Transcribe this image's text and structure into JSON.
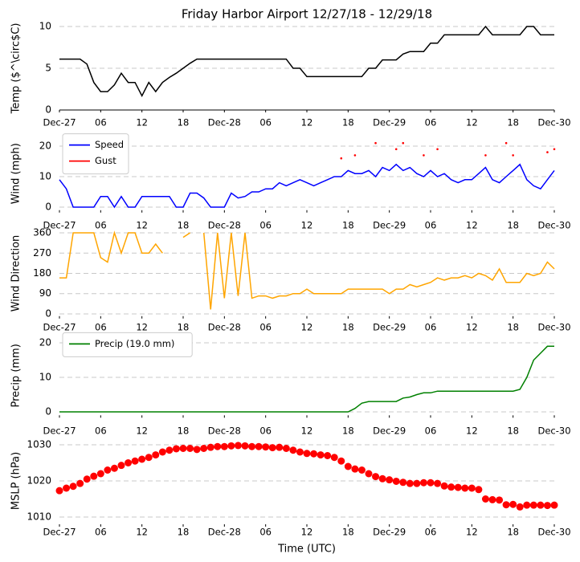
{
  "chart_data": [
    {
      "type": "line",
      "title": "Friday Harbor Airport 12/27/18 - 12/29/18",
      "ylabel": "Temp ($^\\circ$C)",
      "x": [
        0,
        1,
        2,
        3,
        4,
        5,
        6,
        7,
        8,
        9,
        10,
        11,
        12,
        13,
        14,
        15,
        16,
        17,
        18,
        19,
        20,
        21,
        22,
        23,
        24,
        25,
        26,
        27,
        28,
        29,
        30,
        31,
        32,
        33,
        34,
        35,
        36,
        37,
        38,
        39,
        40,
        41,
        42,
        43,
        44,
        45,
        46,
        47,
        48,
        49,
        50,
        51,
        52,
        53,
        54,
        55,
        56,
        57,
        58,
        59,
        60,
        61,
        62,
        63,
        64,
        65,
        66,
        67,
        68,
        69,
        70,
        71,
        72
      ],
      "xlim": [
        0,
        72
      ],
      "xticks": [
        {
          "value": 0,
          "label": "Dec-27"
        },
        {
          "value": 6,
          "label": "06"
        },
        {
          "value": 12,
          "label": "12"
        },
        {
          "value": 18,
          "label": "18"
        },
        {
          "value": 24,
          "label": "Dec-28"
        },
        {
          "value": 30,
          "label": "06"
        },
        {
          "value": 36,
          "label": "12"
        },
        {
          "value": 42,
          "label": "18"
        },
        {
          "value": 48,
          "label": "Dec-29"
        },
        {
          "value": 54,
          "label": "06"
        },
        {
          "value": 60,
          "label": "12"
        },
        {
          "value": 66,
          "label": "18"
        },
        {
          "value": 72,
          "label": "Dec-30"
        }
      ],
      "ylim": [
        0,
        10
      ],
      "yticks": [
        0,
        5,
        10
      ],
      "grid": true,
      "series": [
        {
          "name": "Temp",
          "color": "#000000",
          "values": [
            6.1,
            6.1,
            6.1,
            6.1,
            5.5,
            3.3,
            2.2,
            2.2,
            3,
            4.4,
            3.3,
            3.3,
            1.7,
            3.3,
            2.2,
            3.3,
            3.9,
            4.4,
            5,
            5.6,
            6.1,
            6.1,
            6.1,
            6.1,
            6.1,
            6.1,
            6.1,
            6.1,
            6.1,
            6.1,
            6.1,
            6.1,
            6.1,
            6.1,
            5,
            5,
            4,
            4,
            4,
            4,
            4,
            4,
            4,
            4,
            4,
            5,
            5,
            6,
            6,
            6,
            6.7,
            7,
            7,
            7,
            8,
            8,
            9,
            9,
            9,
            9,
            9,
            9,
            10,
            9,
            9,
            9,
            9,
            9,
            10,
            10,
            9,
            9,
            9
          ]
        }
      ]
    },
    {
      "type": "line",
      "ylabel": "Wind (mph)",
      "x": [
        0,
        1,
        2,
        3,
        4,
        5,
        6,
        7,
        8,
        9,
        10,
        11,
        12,
        13,
        14,
        15,
        16,
        17,
        18,
        19,
        20,
        21,
        22,
        23,
        24,
        25,
        26,
        27,
        28,
        29,
        30,
        31,
        32,
        33,
        34,
        35,
        36,
        37,
        38,
        39,
        40,
        41,
        42,
        43,
        44,
        45,
        46,
        47,
        48,
        49,
        50,
        51,
        52,
        53,
        54,
        55,
        56,
        57,
        58,
        59,
        60,
        61,
        62,
        63,
        64,
        65,
        66,
        67,
        68,
        69,
        70,
        71,
        72
      ],
      "xlim": [
        0,
        72
      ],
      "xticks": [
        {
          "value": 0,
          "label": "Dec-27"
        },
        {
          "value": 6,
          "label": "06"
        },
        {
          "value": 12,
          "label": "12"
        },
        {
          "value": 18,
          "label": "18"
        },
        {
          "value": 24,
          "label": "Dec-28"
        },
        {
          "value": 30,
          "label": "06"
        },
        {
          "value": 36,
          "label": "12"
        },
        {
          "value": 42,
          "label": "18"
        },
        {
          "value": 48,
          "label": "Dec-29"
        },
        {
          "value": 54,
          "label": "06"
        },
        {
          "value": 60,
          "label": "12"
        },
        {
          "value": 66,
          "label": "18"
        },
        {
          "value": 72,
          "label": "Dec-30"
        }
      ],
      "ylim": [
        -1,
        23
      ],
      "yticks": [
        0,
        10,
        20
      ],
      "grid": true,
      "legend": "upper left",
      "series": [
        {
          "name": "Speed",
          "color": "#0000ff",
          "values": [
            9,
            6,
            0,
            0,
            0,
            0,
            3.5,
            3.5,
            0,
            3.5,
            0,
            0,
            3.5,
            3.5,
            3.5,
            3.5,
            3.5,
            0,
            0,
            4.6,
            4.6,
            3,
            0,
            0,
            0,
            4.6,
            3,
            3.5,
            5,
            5,
            6,
            6,
            8,
            7,
            8,
            9,
            8,
            7,
            8,
            9,
            10,
            10,
            12,
            11,
            11,
            12,
            10,
            13,
            12,
            14,
            12,
            13,
            11,
            10,
            12,
            10,
            11,
            9,
            8,
            9,
            9,
            11,
            13,
            9,
            8,
            10,
            12,
            14,
            9,
            7,
            6,
            9,
            12
          ]
        },
        {
          "name": "Gust",
          "color": "#ff0000",
          "marker": "dot",
          "values": [
            null,
            null,
            null,
            null,
            null,
            null,
            null,
            null,
            null,
            null,
            null,
            null,
            null,
            null,
            null,
            null,
            null,
            null,
            null,
            null,
            null,
            null,
            null,
            null,
            null,
            null,
            null,
            null,
            null,
            null,
            null,
            null,
            null,
            null,
            null,
            null,
            null,
            null,
            null,
            null,
            null,
            16,
            null,
            17,
            null,
            null,
            21,
            null,
            null,
            19,
            21,
            null,
            null,
            17,
            null,
            19,
            null,
            null,
            null,
            null,
            null,
            null,
            17,
            null,
            null,
            21,
            17,
            null,
            null,
            null,
            null,
            18,
            19
          ]
        }
      ]
    },
    {
      "type": "line",
      "ylabel": "Wind Direction",
      "x": [
        0,
        1,
        2,
        3,
        4,
        5,
        6,
        7,
        8,
        9,
        10,
        11,
        12,
        13,
        14,
        15,
        16,
        17,
        18,
        19,
        20,
        21,
        22,
        23,
        24,
        25,
        26,
        27,
        28,
        29,
        30,
        31,
        32,
        33,
        34,
        35,
        36,
        37,
        38,
        39,
        40,
        41,
        42,
        43,
        44,
        45,
        46,
        47,
        48,
        49,
        50,
        51,
        52,
        53,
        54,
        55,
        56,
        57,
        58,
        59,
        60,
        61,
        62,
        63,
        64,
        65,
        66,
        67,
        68,
        69,
        70,
        71,
        72
      ],
      "xlim": [
        0,
        72
      ],
      "xticks": [
        {
          "value": 0,
          "label": "Dec-27"
        },
        {
          "value": 6,
          "label": "06"
        },
        {
          "value": 12,
          "label": "12"
        },
        {
          "value": 18,
          "label": "18"
        },
        {
          "value": 24,
          "label": "Dec-28"
        },
        {
          "value": 30,
          "label": "06"
        },
        {
          "value": 36,
          "label": "12"
        },
        {
          "value": 42,
          "label": "18"
        },
        {
          "value": 48,
          "label": "Dec-29"
        },
        {
          "value": 54,
          "label": "06"
        },
        {
          "value": 60,
          "label": "12"
        },
        {
          "value": 66,
          "label": "18"
        },
        {
          "value": 72,
          "label": "Dec-30"
        }
      ],
      "ylim": [
        -10,
        370
      ],
      "yticks": [
        0,
        90,
        180,
        270,
        360
      ],
      "grid": true,
      "series": [
        {
          "name": "Direction",
          "color": "#ffa500",
          "values": [
            160,
            160,
            360,
            360,
            360,
            360,
            250,
            230,
            360,
            270,
            360,
            360,
            270,
            270,
            310,
            270,
            null,
            null,
            340,
            360,
            null,
            360,
            20,
            360,
            70,
            360,
            80,
            360,
            70,
            80,
            80,
            70,
            80,
            80,
            90,
            90,
            110,
            90,
            90,
            90,
            90,
            90,
            110,
            110,
            110,
            110,
            110,
            110,
            90,
            110,
            110,
            130,
            120,
            130,
            140,
            160,
            150,
            160,
            160,
            170,
            160,
            180,
            170,
            150,
            200,
            140,
            140,
            140,
            180,
            170,
            180,
            230,
            200
          ]
        }
      ]
    },
    {
      "type": "line",
      "ylabel": "Precip (mm)",
      "x": [
        0,
        1,
        2,
        3,
        4,
        5,
        6,
        7,
        8,
        9,
        10,
        11,
        12,
        13,
        14,
        15,
        16,
        17,
        18,
        19,
        20,
        21,
        22,
        23,
        24,
        25,
        26,
        27,
        28,
        29,
        30,
        31,
        32,
        33,
        34,
        35,
        36,
        37,
        38,
        39,
        40,
        41,
        42,
        43,
        44,
        45,
        46,
        47,
        48,
        49,
        50,
        51,
        52,
        53,
        54,
        55,
        56,
        57,
        58,
        59,
        60,
        61,
        62,
        63,
        64,
        65,
        66,
        67,
        68,
        69,
        70,
        71,
        72
      ],
      "xlim": [
        0,
        72
      ],
      "xticks": [
        {
          "value": 0,
          "label": "Dec-27"
        },
        {
          "value": 6,
          "label": "06"
        },
        {
          "value": 12,
          "label": "12"
        },
        {
          "value": 18,
          "label": "18"
        },
        {
          "value": 24,
          "label": "Dec-28"
        },
        {
          "value": 30,
          "label": "06"
        },
        {
          "value": 36,
          "label": "12"
        },
        {
          "value": 42,
          "label": "18"
        },
        {
          "value": 48,
          "label": "Dec-29"
        },
        {
          "value": 54,
          "label": "06"
        },
        {
          "value": 60,
          "label": "12"
        },
        {
          "value": 66,
          "label": "18"
        },
        {
          "value": 72,
          "label": "Dec-30"
        }
      ],
      "ylim": [
        -1,
        22
      ],
      "yticks": [
        0,
        10,
        20
      ],
      "grid": true,
      "legend": "upper left",
      "series": [
        {
          "name": "Precip (19.0 mm)",
          "color": "#008000",
          "values": [
            0,
            0,
            0,
            0,
            0,
            0,
            0,
            0,
            0,
            0,
            0,
            0,
            0,
            0,
            0,
            0,
            0,
            0,
            0,
            0,
            0,
            0,
            0,
            0,
            0,
            0,
            0,
            0,
            0,
            0,
            0,
            0,
            0,
            0,
            0,
            0,
            0,
            0,
            0,
            0,
            0,
            0,
            0,
            1,
            2.5,
            3,
            3,
            3,
            3,
            3,
            4,
            4.3,
            5,
            5.5,
            5.5,
            6,
            6,
            6,
            6,
            6,
            6,
            6,
            6,
            6,
            6,
            6,
            6,
            6.5,
            10,
            15,
            17,
            19,
            19
          ]
        }
      ]
    },
    {
      "type": "scatter",
      "ylabel": "MSLP (hPa)",
      "xlabel": "Time (UTC)",
      "x": [
        0,
        1,
        2,
        3,
        4,
        5,
        6,
        7,
        8,
        9,
        10,
        11,
        12,
        13,
        14,
        15,
        16,
        17,
        18,
        19,
        20,
        21,
        22,
        23,
        24,
        25,
        26,
        27,
        28,
        29,
        30,
        31,
        32,
        33,
        34,
        35,
        36,
        37,
        38,
        39,
        40,
        41,
        42,
        43,
        44,
        45,
        46,
        47,
        48,
        49,
        50,
        51,
        52,
        53,
        54,
        55,
        56,
        57,
        58,
        59,
        60,
        61,
        62,
        63,
        64,
        65,
        66,
        67,
        68,
        69,
        70,
        71,
        72
      ],
      "xlim": [
        0,
        72
      ],
      "xticks": [
        {
          "value": 0,
          "label": "Dec-27"
        },
        {
          "value": 6,
          "label": "06"
        },
        {
          "value": 12,
          "label": "12"
        },
        {
          "value": 18,
          "label": "18"
        },
        {
          "value": 24,
          "label": "Dec-28"
        },
        {
          "value": 30,
          "label": "06"
        },
        {
          "value": 36,
          "label": "12"
        },
        {
          "value": 42,
          "label": "18"
        },
        {
          "value": 48,
          "label": "Dec-29"
        },
        {
          "value": 54,
          "label": "06"
        },
        {
          "value": 60,
          "label": "12"
        },
        {
          "value": 66,
          "label": "18"
        },
        {
          "value": 72,
          "label": "Dec-30"
        }
      ],
      "ylim": [
        1008,
        1032
      ],
      "yticks": [
        1010,
        1020,
        1030
      ],
      "grid": true,
      "series": [
        {
          "name": "MSLP",
          "color": "#ff0000",
          "values": [
            1017.3,
            1018,
            1018.5,
            1019.3,
            1020.5,
            1021.3,
            1022,
            1023,
            1023.5,
            1024.3,
            1025,
            1025.5,
            1026,
            1026.5,
            1027.2,
            1028,
            1028.5,
            1028.9,
            1029,
            1029,
            1028.7,
            1029,
            1029.3,
            1029.5,
            1029.5,
            1029.7,
            1029.8,
            1029.7,
            1029.5,
            1029.5,
            1029.4,
            1029.2,
            1029.3,
            1029,
            1028.5,
            1028,
            1027.6,
            1027.5,
            1027.2,
            1027,
            1026.5,
            1025.5,
            1024,
            1023.3,
            1023,
            1022,
            1021.2,
            1020.6,
            1020.3,
            1019.9,
            1019.6,
            1019.3,
            1019.3,
            1019.5,
            1019.5,
            1019.3,
            1018.6,
            1018.3,
            1018.2,
            1018,
            1018,
            1017.6,
            1015,
            1014.8,
            1014.7,
            1013.4,
            1013.5,
            1012.8,
            1013.3,
            1013.3,
            1013.3,
            1013.2,
            1013.3
          ]
        }
      ]
    }
  ]
}
